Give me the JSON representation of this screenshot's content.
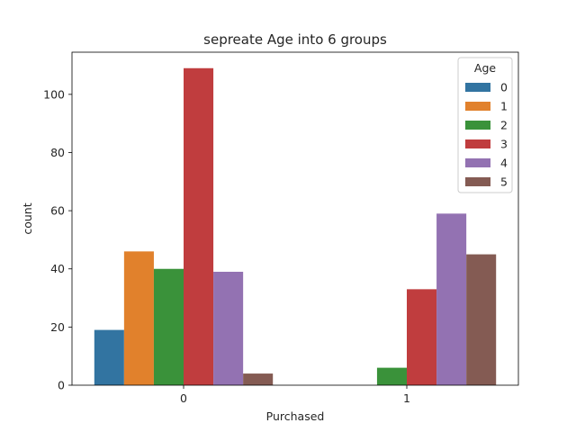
{
  "chart_data": {
    "type": "bar",
    "title": "sepreate Age into 6 groups",
    "xlabel": "Purchased",
    "ylabel": "count",
    "categories": [
      "0",
      "1"
    ],
    "ylim": [
      0,
      114.5
    ],
    "yticks": [
      0,
      20,
      40,
      60,
      80,
      100
    ],
    "grid": false,
    "legend": {
      "title": "Age",
      "placement": "top-right"
    },
    "series": [
      {
        "name": "0",
        "color": "#3274a1",
        "values": [
          19,
          0
        ]
      },
      {
        "name": "1",
        "color": "#e1812c",
        "values": [
          46,
          0
        ]
      },
      {
        "name": "2",
        "color": "#3a923a",
        "values": [
          40,
          6
        ]
      },
      {
        "name": "3",
        "color": "#c03d3e",
        "values": [
          109,
          33
        ]
      },
      {
        "name": "4",
        "color": "#9372b2",
        "values": [
          39,
          59
        ]
      },
      {
        "name": "5",
        "color": "#845b53",
        "values": [
          4,
          45
        ]
      }
    ]
  }
}
